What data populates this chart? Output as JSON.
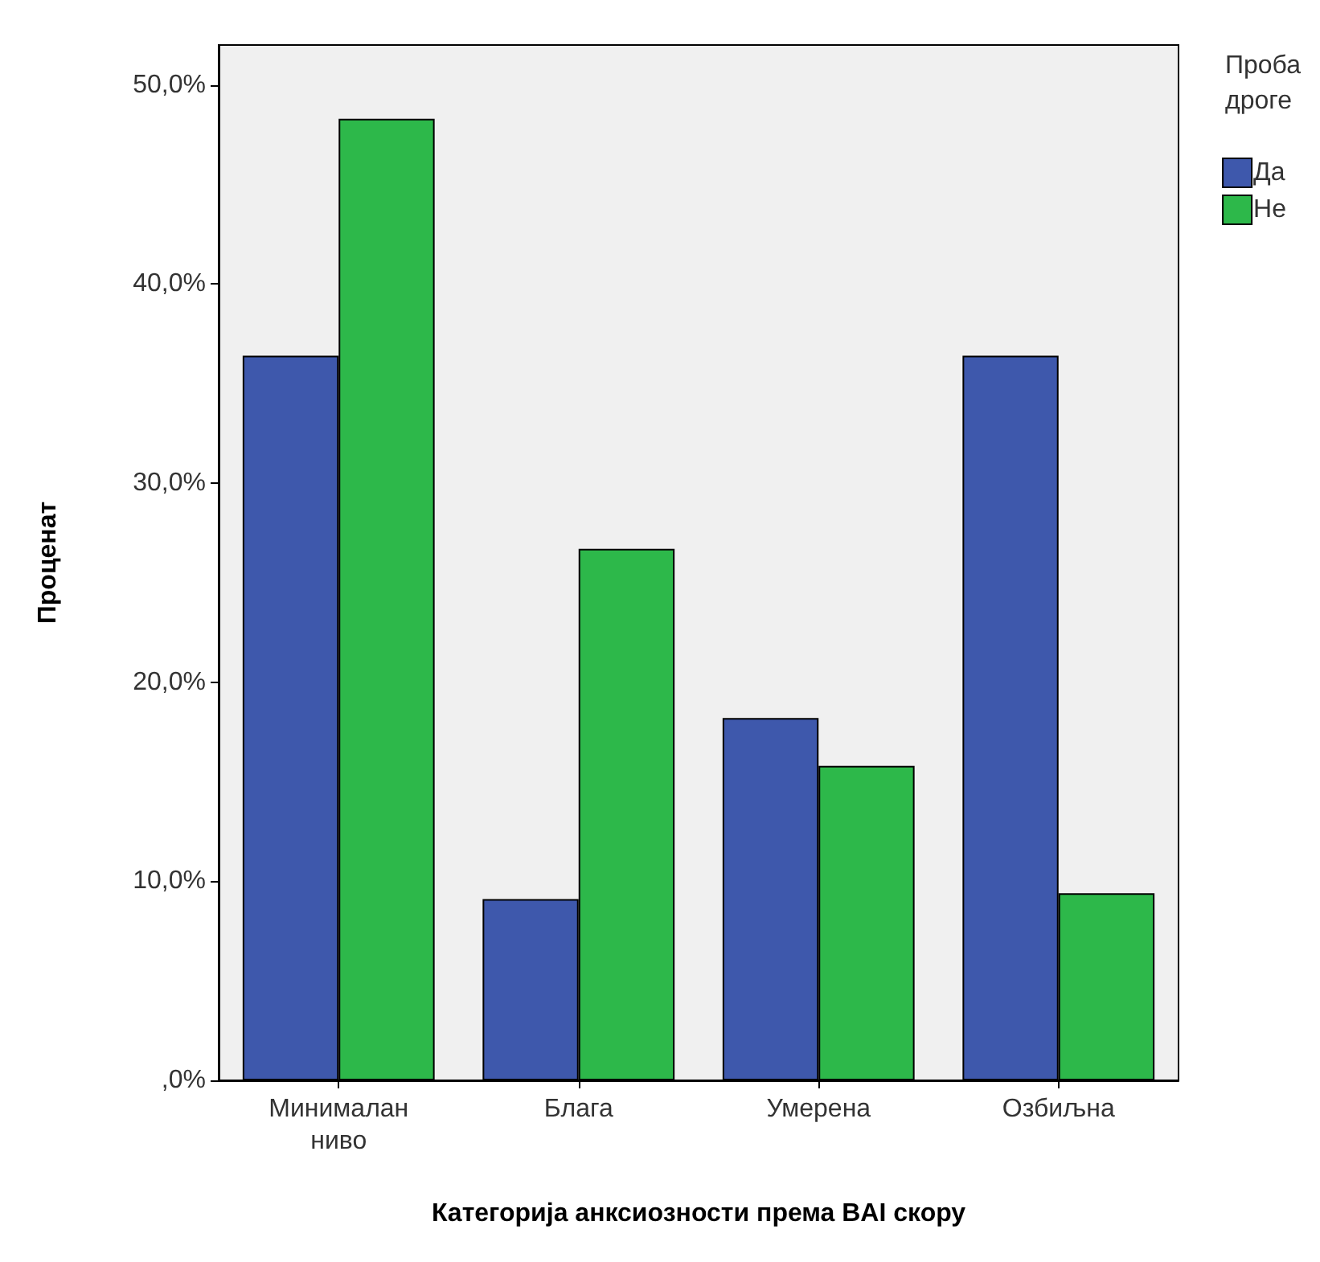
{
  "chart_data": {
    "type": "bar",
    "xlabel": "Категорија анксиозности према BAI скору",
    "ylabel": "Проценат",
    "legend_title": "Проба дроге",
    "categories": [
      "Минималан ниво",
      "Блага",
      "Умерена",
      "Озбиљна"
    ],
    "series": [
      {
        "name": "Да",
        "color": "#3e58ac",
        "values": [
          36.4,
          9.1,
          18.2,
          36.4
        ]
      },
      {
        "name": "Не",
        "color": "#2db84a",
        "values": [
          48.3,
          26.7,
          15.8,
          9.4
        ]
      }
    ],
    "ylim": [
      0,
      52
    ],
    "yticks": [
      {
        "value": 0,
        "label": ",0%"
      },
      {
        "value": 10,
        "label": "10,0%"
      },
      {
        "value": 20,
        "label": "20,0%"
      },
      {
        "value": 30,
        "label": "30,0%"
      },
      {
        "value": 40,
        "label": "40,0%"
      },
      {
        "value": 50,
        "label": "50,0%"
      }
    ],
    "grid": false,
    "legend": "top right"
  }
}
